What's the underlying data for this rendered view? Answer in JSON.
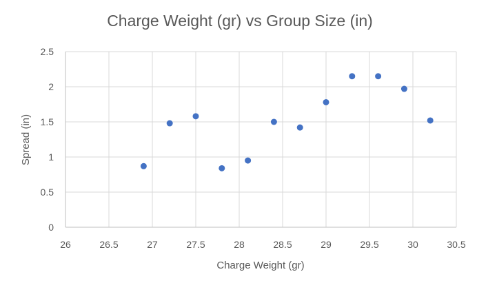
{
  "chart_data": {
    "type": "scatter",
    "title": "Charge Weight (gr) vs Group Size (in)",
    "xlabel": "Charge Weight (gr)",
    "ylabel": "Spread (in)",
    "xlim": [
      26,
      30.5
    ],
    "ylim": [
      0,
      2.5
    ],
    "x_ticks": [
      "26",
      "26.5",
      "27",
      "27.5",
      "28",
      "28.5",
      "29",
      "29.5",
      "30",
      "30.5"
    ],
    "y_ticks": [
      "0",
      "0.5",
      "1",
      "1.5",
      "2",
      "2.5"
    ],
    "grid": true,
    "legend": "none",
    "marker_color": "#4472C4",
    "series": [
      {
        "points": [
          {
            "x": 26.9,
            "y": 0.87
          },
          {
            "x": 27.2,
            "y": 1.48
          },
          {
            "x": 27.5,
            "y": 1.58
          },
          {
            "x": 27.8,
            "y": 0.84
          },
          {
            "x": 28.1,
            "y": 0.95
          },
          {
            "x": 28.4,
            "y": 1.5
          },
          {
            "x": 28.7,
            "y": 1.42
          },
          {
            "x": 29.0,
            "y": 1.78
          },
          {
            "x": 29.3,
            "y": 2.15
          },
          {
            "x": 29.6,
            "y": 2.15
          },
          {
            "x": 29.9,
            "y": 1.97
          },
          {
            "x": 30.2,
            "y": 1.52
          }
        ]
      }
    ]
  }
}
